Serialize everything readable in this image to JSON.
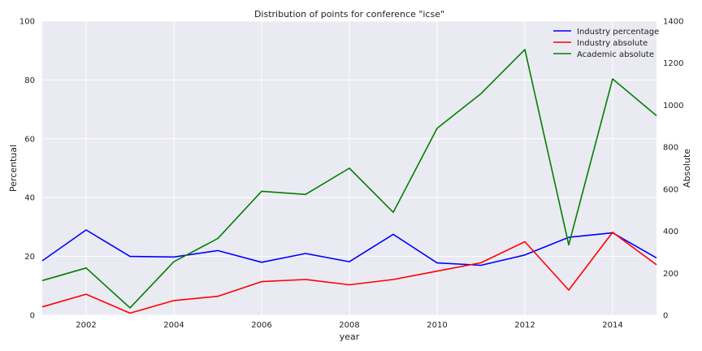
{
  "chart_data": {
    "type": "line",
    "title": "Distribution of points for conference \"icse\"",
    "xlabel": "year",
    "ylabel_left": "Percentual",
    "ylabel_right": "Absolute",
    "x": [
      2001,
      2002,
      2003,
      2004,
      2005,
      2006,
      2007,
      2008,
      2009,
      2010,
      2011,
      2012,
      2013,
      2014,
      2015
    ],
    "xlim": [
      2001,
      2015
    ],
    "x_ticks": [
      "2002",
      "2004",
      "2006",
      "2008",
      "2010",
      "2012",
      "2014"
    ],
    "ylim_left": [
      0,
      100
    ],
    "y_ticks_left": [
      "0",
      "20",
      "40",
      "60",
      "80",
      "100"
    ],
    "ylim_right": [
      0,
      1400
    ],
    "y_ticks_right": [
      "0",
      "200",
      "400",
      "600",
      "800",
      "1000",
      "1200",
      "1400"
    ],
    "grid": true,
    "legend_position": "top-right",
    "series": [
      {
        "name": "Industry percentage",
        "axis": "left",
        "color": "#0000ff",
        "values": [
          18.5,
          29,
          20,
          19.8,
          22,
          18,
          21,
          18.2,
          27.5,
          17.8,
          17,
          20.5,
          26.5,
          28,
          19.5
        ]
      },
      {
        "name": "Industry absolute",
        "axis": "right",
        "color": "#ff0000",
        "values": [
          40,
          100,
          10,
          70,
          90,
          160,
          170,
          145,
          170,
          210,
          250,
          350,
          120,
          395,
          240
        ]
      },
      {
        "name": "Academic absolute",
        "axis": "right",
        "color": "#008000",
        "values": [
          165,
          225,
          35,
          255,
          365,
          590,
          575,
          700,
          490,
          890,
          1055,
          1265,
          335,
          1125,
          950
        ]
      }
    ]
  }
}
